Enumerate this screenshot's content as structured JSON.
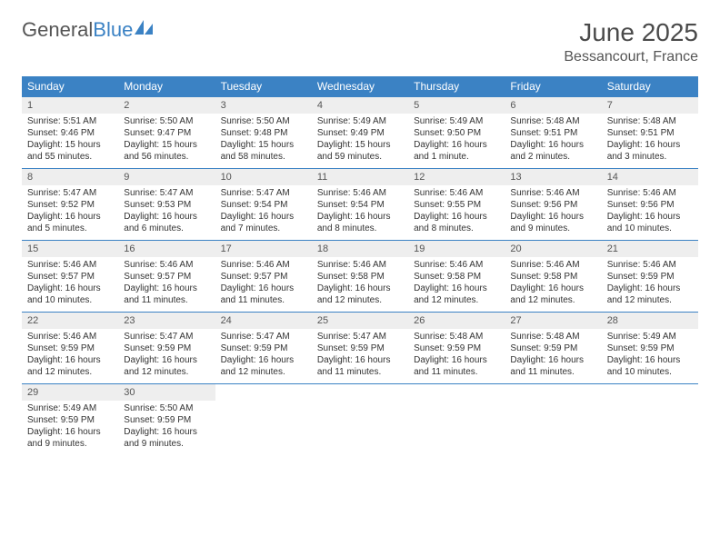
{
  "brand": {
    "part1": "General",
    "part2": "Blue"
  },
  "title": "June 2025",
  "location": "Bessancourt, France",
  "colors": {
    "header_bg": "#3b82c4",
    "header_text": "#ffffff",
    "daynum_bg": "#eeeeee",
    "text": "#333333",
    "border": "#3b82c4"
  },
  "daysOfWeek": [
    "Sunday",
    "Monday",
    "Tuesday",
    "Wednesday",
    "Thursday",
    "Friday",
    "Saturday"
  ],
  "weeks": [
    [
      {
        "num": "1",
        "sunrise": "Sunrise: 5:51 AM",
        "sunset": "Sunset: 9:46 PM",
        "day1": "Daylight: 15 hours",
        "day2": "and 55 minutes."
      },
      {
        "num": "2",
        "sunrise": "Sunrise: 5:50 AM",
        "sunset": "Sunset: 9:47 PM",
        "day1": "Daylight: 15 hours",
        "day2": "and 56 minutes."
      },
      {
        "num": "3",
        "sunrise": "Sunrise: 5:50 AM",
        "sunset": "Sunset: 9:48 PM",
        "day1": "Daylight: 15 hours",
        "day2": "and 58 minutes."
      },
      {
        "num": "4",
        "sunrise": "Sunrise: 5:49 AM",
        "sunset": "Sunset: 9:49 PM",
        "day1": "Daylight: 15 hours",
        "day2": "and 59 minutes."
      },
      {
        "num": "5",
        "sunrise": "Sunrise: 5:49 AM",
        "sunset": "Sunset: 9:50 PM",
        "day1": "Daylight: 16 hours",
        "day2": "and 1 minute."
      },
      {
        "num": "6",
        "sunrise": "Sunrise: 5:48 AM",
        "sunset": "Sunset: 9:51 PM",
        "day1": "Daylight: 16 hours",
        "day2": "and 2 minutes."
      },
      {
        "num": "7",
        "sunrise": "Sunrise: 5:48 AM",
        "sunset": "Sunset: 9:51 PM",
        "day1": "Daylight: 16 hours",
        "day2": "and 3 minutes."
      }
    ],
    [
      {
        "num": "8",
        "sunrise": "Sunrise: 5:47 AM",
        "sunset": "Sunset: 9:52 PM",
        "day1": "Daylight: 16 hours",
        "day2": "and 5 minutes."
      },
      {
        "num": "9",
        "sunrise": "Sunrise: 5:47 AM",
        "sunset": "Sunset: 9:53 PM",
        "day1": "Daylight: 16 hours",
        "day2": "and 6 minutes."
      },
      {
        "num": "10",
        "sunrise": "Sunrise: 5:47 AM",
        "sunset": "Sunset: 9:54 PM",
        "day1": "Daylight: 16 hours",
        "day2": "and 7 minutes."
      },
      {
        "num": "11",
        "sunrise": "Sunrise: 5:46 AM",
        "sunset": "Sunset: 9:54 PM",
        "day1": "Daylight: 16 hours",
        "day2": "and 8 minutes."
      },
      {
        "num": "12",
        "sunrise": "Sunrise: 5:46 AM",
        "sunset": "Sunset: 9:55 PM",
        "day1": "Daylight: 16 hours",
        "day2": "and 8 minutes."
      },
      {
        "num": "13",
        "sunrise": "Sunrise: 5:46 AM",
        "sunset": "Sunset: 9:56 PM",
        "day1": "Daylight: 16 hours",
        "day2": "and 9 minutes."
      },
      {
        "num": "14",
        "sunrise": "Sunrise: 5:46 AM",
        "sunset": "Sunset: 9:56 PM",
        "day1": "Daylight: 16 hours",
        "day2": "and 10 minutes."
      }
    ],
    [
      {
        "num": "15",
        "sunrise": "Sunrise: 5:46 AM",
        "sunset": "Sunset: 9:57 PM",
        "day1": "Daylight: 16 hours",
        "day2": "and 10 minutes."
      },
      {
        "num": "16",
        "sunrise": "Sunrise: 5:46 AM",
        "sunset": "Sunset: 9:57 PM",
        "day1": "Daylight: 16 hours",
        "day2": "and 11 minutes."
      },
      {
        "num": "17",
        "sunrise": "Sunrise: 5:46 AM",
        "sunset": "Sunset: 9:57 PM",
        "day1": "Daylight: 16 hours",
        "day2": "and 11 minutes."
      },
      {
        "num": "18",
        "sunrise": "Sunrise: 5:46 AM",
        "sunset": "Sunset: 9:58 PM",
        "day1": "Daylight: 16 hours",
        "day2": "and 12 minutes."
      },
      {
        "num": "19",
        "sunrise": "Sunrise: 5:46 AM",
        "sunset": "Sunset: 9:58 PM",
        "day1": "Daylight: 16 hours",
        "day2": "and 12 minutes."
      },
      {
        "num": "20",
        "sunrise": "Sunrise: 5:46 AM",
        "sunset": "Sunset: 9:58 PM",
        "day1": "Daylight: 16 hours",
        "day2": "and 12 minutes."
      },
      {
        "num": "21",
        "sunrise": "Sunrise: 5:46 AM",
        "sunset": "Sunset: 9:59 PM",
        "day1": "Daylight: 16 hours",
        "day2": "and 12 minutes."
      }
    ],
    [
      {
        "num": "22",
        "sunrise": "Sunrise: 5:46 AM",
        "sunset": "Sunset: 9:59 PM",
        "day1": "Daylight: 16 hours",
        "day2": "and 12 minutes."
      },
      {
        "num": "23",
        "sunrise": "Sunrise: 5:47 AM",
        "sunset": "Sunset: 9:59 PM",
        "day1": "Daylight: 16 hours",
        "day2": "and 12 minutes."
      },
      {
        "num": "24",
        "sunrise": "Sunrise: 5:47 AM",
        "sunset": "Sunset: 9:59 PM",
        "day1": "Daylight: 16 hours",
        "day2": "and 12 minutes."
      },
      {
        "num": "25",
        "sunrise": "Sunrise: 5:47 AM",
        "sunset": "Sunset: 9:59 PM",
        "day1": "Daylight: 16 hours",
        "day2": "and 11 minutes."
      },
      {
        "num": "26",
        "sunrise": "Sunrise: 5:48 AM",
        "sunset": "Sunset: 9:59 PM",
        "day1": "Daylight: 16 hours",
        "day2": "and 11 minutes."
      },
      {
        "num": "27",
        "sunrise": "Sunrise: 5:48 AM",
        "sunset": "Sunset: 9:59 PM",
        "day1": "Daylight: 16 hours",
        "day2": "and 11 minutes."
      },
      {
        "num": "28",
        "sunrise": "Sunrise: 5:49 AM",
        "sunset": "Sunset: 9:59 PM",
        "day1": "Daylight: 16 hours",
        "day2": "and 10 minutes."
      }
    ],
    [
      {
        "num": "29",
        "sunrise": "Sunrise: 5:49 AM",
        "sunset": "Sunset: 9:59 PM",
        "day1": "Daylight: 16 hours",
        "day2": "and 9 minutes."
      },
      {
        "num": "30",
        "sunrise": "Sunrise: 5:50 AM",
        "sunset": "Sunset: 9:59 PM",
        "day1": "Daylight: 16 hours",
        "day2": "and 9 minutes."
      },
      {
        "empty": true
      },
      {
        "empty": true
      },
      {
        "empty": true
      },
      {
        "empty": true
      },
      {
        "empty": true
      }
    ]
  ]
}
